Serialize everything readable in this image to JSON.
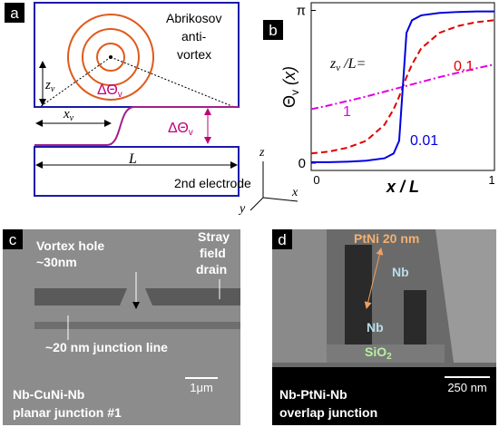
{
  "panels": {
    "a": {
      "label": "a",
      "vortex": [
        "Abrikosov",
        "anti-",
        "vortex"
      ],
      "zv": {
        "main": "z",
        "sub": "v"
      },
      "dtheta": {
        "main": "ΔΘ",
        "sub": "v"
      },
      "xv": {
        "main": "x",
        "sub": "v"
      },
      "length": "L",
      "electrode": "2nd electrode",
      "axes": {
        "z": "z",
        "y": "y",
        "x": "x"
      }
    },
    "b": {
      "label": "b"
    },
    "c": {
      "label": "c",
      "vortex_hole": [
        "Vortex hole",
        "~30nm"
      ],
      "stray": [
        "Stray",
        "field",
        "drain"
      ],
      "junction_line": "~20 nm junction line",
      "scale": "1μm",
      "caption": [
        "Nb-CuNi-Nb",
        "planar junction #1"
      ]
    },
    "d": {
      "label": "d",
      "ptni": "PtNi 20 nm",
      "nb_top": "Nb",
      "nb_bottom": "Nb",
      "sio2": {
        "main": "SiO",
        "sub": "2"
      },
      "scale": "250 nm",
      "caption": [
        "Nb-PtNi-Nb",
        "overlap junction"
      ]
    }
  },
  "chart_data": {
    "type": "line",
    "ylabel": {
      "main": "Θ",
      "sub": "v",
      "rest": " (x)"
    },
    "xlabel": "x / L",
    "legend_title": {
      "main": "z",
      "sub": "v",
      "rest": " /L="
    },
    "x": [
      0,
      0.1,
      0.2,
      0.3,
      0.4,
      0.45,
      0.48,
      0.5,
      0.52,
      0.55,
      0.6,
      0.7,
      0.8,
      0.9,
      1
    ],
    "xlim": [
      0,
      1
    ],
    "xticks": [
      0,
      1
    ],
    "ylim": [
      -0.15,
      3.3
    ],
    "yticks": [
      0,
      {
        "value": 3.14159,
        "label": "π"
      }
    ],
    "series": [
      {
        "name": "0.1",
        "color": "#e00000",
        "dash": "7,4",
        "values": [
          0.2,
          0.24,
          0.32,
          0.46,
          0.79,
          1.11,
          1.37,
          1.57,
          1.77,
          2.03,
          2.36,
          2.68,
          2.82,
          2.9,
          2.94
        ]
      },
      {
        "name": "1",
        "color": "#e000e0",
        "dash": "8,3,2,3",
        "values": [
          1.11,
          1.19,
          1.28,
          1.37,
          1.47,
          1.52,
          1.55,
          1.57,
          1.59,
          1.62,
          1.67,
          1.77,
          1.86,
          1.95,
          2.03
        ]
      },
      {
        "name": "0.01",
        "color": "#0000e0",
        "dash": "",
        "values": [
          0.02,
          0.02,
          0.03,
          0.05,
          0.1,
          0.2,
          0.46,
          1.57,
          2.68,
          2.94,
          3.04,
          3.09,
          3.11,
          3.12,
          3.12
        ]
      }
    ]
  }
}
